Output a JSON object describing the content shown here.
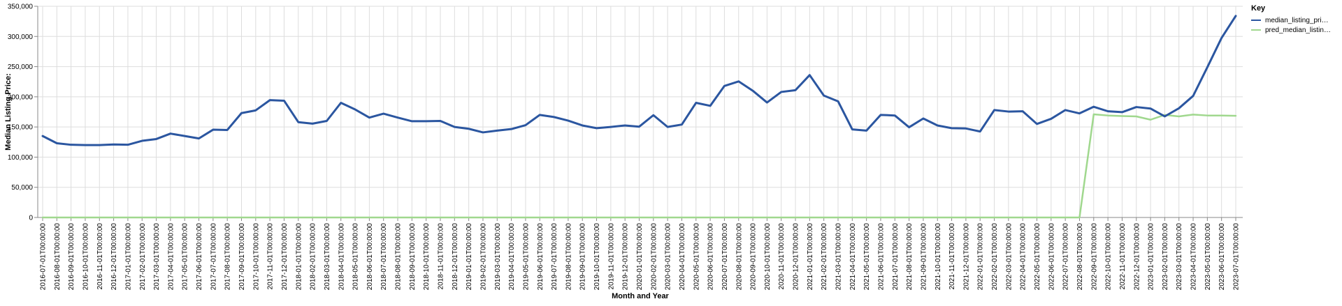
{
  "chart_data": {
    "type": "line",
    "title": "",
    "xlabel": "Month and Year",
    "ylabel": "Median Listing Price:",
    "ylim": [
      0,
      350000
    ],
    "yticks": [
      0,
      50000,
      100000,
      150000,
      200000,
      250000,
      300000,
      350000
    ],
    "ytick_labels": [
      "0",
      "50,000",
      "100,000",
      "150,000",
      "200,000",
      "250,000",
      "300,000",
      "350,000"
    ],
    "grid": true,
    "legend": {
      "title": "Key",
      "placement": "top-right"
    },
    "x": [
      "2016-07-01T00:00:00",
      "2016-08-01T00:00:00",
      "2016-09-01T00:00:00",
      "2016-10-01T00:00:00",
      "2016-11-01T00:00:00",
      "2016-12-01T00:00:00",
      "2017-01-01T00:00:00",
      "2017-02-01T00:00:00",
      "2017-03-01T00:00:00",
      "2017-04-01T00:00:00",
      "2017-05-01T00:00:00",
      "2017-06-01T00:00:00",
      "2017-07-01T00:00:00",
      "2017-08-01T00:00:00",
      "2017-09-01T00:00:00",
      "2017-10-01T00:00:00",
      "2017-11-01T00:00:00",
      "2017-12-01T00:00:00",
      "2018-01-01T00:00:00",
      "2018-02-01T00:00:00",
      "2018-03-01T00:00:00",
      "2018-04-01T00:00:00",
      "2018-05-01T00:00:00",
      "2018-06-01T00:00:00",
      "2018-07-01T00:00:00",
      "2018-08-01T00:00:00",
      "2018-09-01T00:00:00",
      "2018-10-01T00:00:00",
      "2018-11-01T00:00:00",
      "2018-12-01T00:00:00",
      "2019-01-01T00:00:00",
      "2019-02-01T00:00:00",
      "2019-03-01T00:00:00",
      "2019-04-01T00:00:00",
      "2019-05-01T00:00:00",
      "2019-06-01T00:00:00",
      "2019-07-01T00:00:00",
      "2019-08-01T00:00:00",
      "2019-09-01T00:00:00",
      "2019-10-01T00:00:00",
      "2019-11-01T00:00:00",
      "2019-12-01T00:00:00",
      "2020-01-01T00:00:00",
      "2020-02-01T00:00:00",
      "2020-03-01T00:00:00",
      "2020-04-01T00:00:00",
      "2020-05-01T00:00:00",
      "2020-06-01T00:00:00",
      "2020-07-01T00:00:00",
      "2020-08-01T00:00:00",
      "2020-09-01T00:00:00",
      "2020-10-01T00:00:00",
      "2020-11-01T00:00:00",
      "2020-12-01T00:00:00",
      "2021-01-01T00:00:00",
      "2021-02-01T00:00:00",
      "2021-03-01T00:00:00",
      "2021-04-01T00:00:00",
      "2021-05-01T00:00:00",
      "2021-06-01T00:00:00",
      "2021-07-01T00:00:00",
      "2021-08-01T00:00:00",
      "2021-09-01T00:00:00",
      "2021-10-01T00:00:00",
      "2021-11-01T00:00:00",
      "2021-12-01T00:00:00",
      "2022-01-01T00:00:00",
      "2022-02-01T00:00:00",
      "2022-03-01T00:00:00",
      "2022-04-01T00:00:00",
      "2022-05-01T00:00:00",
      "2022-06-01T00:00:00",
      "2022-07-01T00:00:00",
      "2022-08-01T00:00:00",
      "2022-09-01T00:00:00",
      "2022-10-01T00:00:00",
      "2022-11-01T00:00:00",
      "2022-12-01T00:00:00",
      "2023-01-01T00:00:00",
      "2023-02-01T00:00:00",
      "2023-03-01T00:00:00",
      "2023-04-01T00:00:00",
      "2023-05-01T00:00:00",
      "2023-06-01T00:00:00",
      "2023-07-01T00:00:00"
    ],
    "series": [
      {
        "name": "median_listing_pri…",
        "color": "#2b56a0",
        "values": [
          135000,
          123000,
          120500,
          120000,
          120000,
          121000,
          120500,
          127000,
          130000,
          139000,
          135000,
          131000,
          145500,
          145000,
          173000,
          177500,
          194500,
          193500,
          158000,
          155500,
          160000,
          190000,
          179000,
          165500,
          172000,
          165500,
          159500,
          159500,
          160000,
          150000,
          147000,
          141000,
          144000,
          146500,
          153000,
          170000,
          166500,
          160500,
          152500,
          148000,
          150000,
          152500,
          150500,
          169500,
          150000,
          154000,
          190000,
          185000,
          218000,
          225500,
          210000,
          190500,
          208000,
          211000,
          236000,
          202000,
          192500,
          146000,
          144000,
          170000,
          169000,
          149500,
          164000,
          152500,
          148000,
          147500,
          142500,
          178000,
          175500,
          176000,
          155000,
          163500,
          178000,
          172500,
          183500,
          176000,
          174500,
          183000,
          180500,
          167500,
          181000,
          201500,
          249000,
          297500,
          334000
        ]
      },
      {
        "name": "pred_median_listin…",
        "color": "#a0d88e",
        "values": [
          0,
          0,
          0,
          0,
          0,
          0,
          0,
          0,
          0,
          0,
          0,
          0,
          0,
          0,
          0,
          0,
          0,
          0,
          0,
          0,
          0,
          0,
          0,
          0,
          0,
          0,
          0,
          0,
          0,
          0,
          0,
          0,
          0,
          0,
          0,
          0,
          0,
          0,
          0,
          0,
          0,
          0,
          0,
          0,
          0,
          0,
          0,
          0,
          0,
          0,
          0,
          0,
          0,
          0,
          0,
          0,
          0,
          0,
          0,
          0,
          0,
          0,
          0,
          0,
          0,
          0,
          0,
          0,
          0,
          0,
          0,
          0,
          0,
          0,
          171000,
          169000,
          168000,
          167500,
          162000,
          170000,
          167500,
          170500,
          169000,
          169000,
          168500
        ]
      }
    ]
  }
}
